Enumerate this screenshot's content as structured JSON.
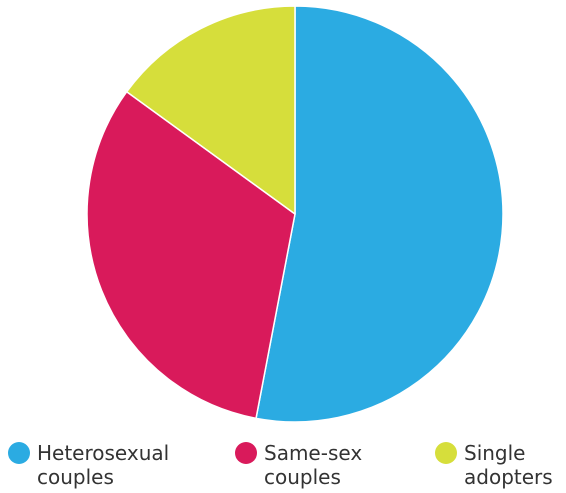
{
  "chart_data": {
    "type": "pie",
    "title": "",
    "series": [
      {
        "name": "",
        "labels": [
          [
            "Heterosexual",
            "couples"
          ],
          [
            "Same-sex",
            "couples"
          ],
          [
            "Single",
            "adopters"
          ]
        ],
        "values": [
          53,
          32,
          15
        ],
        "colors": [
          "#2BABE2",
          "#D91A5B",
          "#D6DE3B"
        ]
      }
    ],
    "legend": {
      "position": "bottom",
      "items": [
        {
          "line1": "Heterosexual",
          "line2": "couples",
          "color": "#2BABE2"
        },
        {
          "line1": "Same-sex",
          "line2": "couples",
          "color": "#D91A5B"
        },
        {
          "line1": "Single",
          "line2": "adopters",
          "color": "#D6DE3B"
        }
      ]
    }
  }
}
